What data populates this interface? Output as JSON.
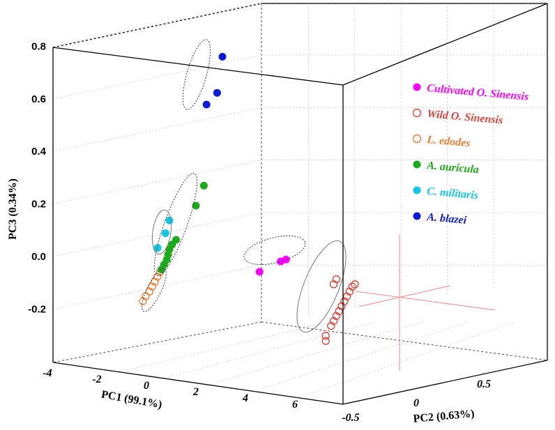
{
  "chart_data": {
    "type": "scatter",
    "projection": "3d",
    "title": "",
    "axes": {
      "x": {
        "label": "PC1 (99.1%)",
        "range": [
          -4,
          8
        ],
        "ticks": [
          "-4",
          "-2",
          "0",
          "2",
          "4",
          "6"
        ]
      },
      "y": {
        "label": "PC2  (0.63%)",
        "range": [
          -0.5,
          1.0
        ],
        "ticks": [
          "-0.5",
          "0",
          "0.5"
        ]
      },
      "z": {
        "label": "PC3 (0.34%)",
        "range": [
          -0.35,
          0.8
        ],
        "ticks": [
          "0.8",
          "0.6",
          "0.4",
          "0.2",
          "0.0",
          "-0.2"
        ]
      }
    },
    "grid": true,
    "legend_position": "top-right",
    "series": [
      {
        "name": "Cultivated O. Sinensis",
        "color": "#ff00ff",
        "marker": "filled-circle",
        "points": [
          {
            "pc1": 4.4,
            "pc3": 0.0
          },
          {
            "pc1": 5.2,
            "pc3": 0.05
          },
          {
            "pc1": 5.4,
            "pc3": 0.06
          }
        ]
      },
      {
        "name": "Wild O. Sinensis",
        "color": "#e0433a",
        "marker": "open-circle",
        "points": [
          {
            "pc1": 6.9,
            "pc3": -0.21
          },
          {
            "pc1": 6.9,
            "pc3": -0.23
          },
          {
            "pc1": 7.1,
            "pc3": -0.17
          },
          {
            "pc1": 7.2,
            "pc3": -0.15
          },
          {
            "pc1": 7.3,
            "pc3": -0.13
          },
          {
            "pc1": 7.4,
            "pc3": -0.11
          },
          {
            "pc1": 7.5,
            "pc3": -0.09
          },
          {
            "pc1": 7.6,
            "pc3": -0.07
          },
          {
            "pc1": 7.7,
            "pc3": -0.05
          },
          {
            "pc1": 7.8,
            "pc3": -0.03
          },
          {
            "pc1": 7.9,
            "pc3": -0.01
          },
          {
            "pc1": 7.2,
            "pc3": -0.01
          },
          {
            "pc1": 7.3,
            "pc3": 0.01
          },
          {
            "pc1": 8.0,
            "pc3": 0.0
          }
        ]
      },
      {
        "name": "L. edodes",
        "color": "#ed7d31",
        "marker": "open-circle",
        "points": [
          {
            "pc1": 0.0,
            "pc3": -0.17
          },
          {
            "pc1": 0.1,
            "pc3": -0.15
          },
          {
            "pc1": 0.25,
            "pc3": -0.13
          },
          {
            "pc1": 0.35,
            "pc3": -0.11
          },
          {
            "pc1": 0.45,
            "pc3": -0.09
          },
          {
            "pc1": 0.55,
            "pc3": -0.07
          },
          {
            "pc1": 0.65,
            "pc3": -0.05
          }
        ]
      },
      {
        "name": "A. auricula",
        "color": "#1aaa1a",
        "marker": "filled-circle",
        "points": [
          {
            "pc1": 0.7,
            "pc3": -0.04
          },
          {
            "pc1": 0.8,
            "pc3": -0.02
          },
          {
            "pc1": 0.9,
            "pc3": 0.0
          },
          {
            "pc1": 0.95,
            "pc3": 0.02
          },
          {
            "pc1": 1.0,
            "pc3": 0.04
          },
          {
            "pc1": 1.1,
            "pc3": 0.06
          },
          {
            "pc1": 1.25,
            "pc3": 0.08
          },
          {
            "pc1": 2.0,
            "pc3": 0.22
          },
          {
            "pc1": 2.3,
            "pc3": 0.3
          }
        ]
      },
      {
        "name": "C. militaris",
        "color": "#10c8e8",
        "marker": "filled-circle",
        "points": [
          {
            "pc1": 0.55,
            "pc3": 0.04
          },
          {
            "pc1": 0.85,
            "pc3": 0.1
          },
          {
            "pc1": 1.0,
            "pc3": 0.15
          }
        ]
      },
      {
        "name": "A. blazei",
        "color": "#0a1ad8",
        "marker": "filled-circle",
        "points": [
          {
            "pc1": 2.4,
            "pc3": 0.61
          },
          {
            "pc1": 2.8,
            "pc3": 0.66
          },
          {
            "pc1": 3.0,
            "pc3": 0.8
          }
        ]
      }
    ]
  }
}
